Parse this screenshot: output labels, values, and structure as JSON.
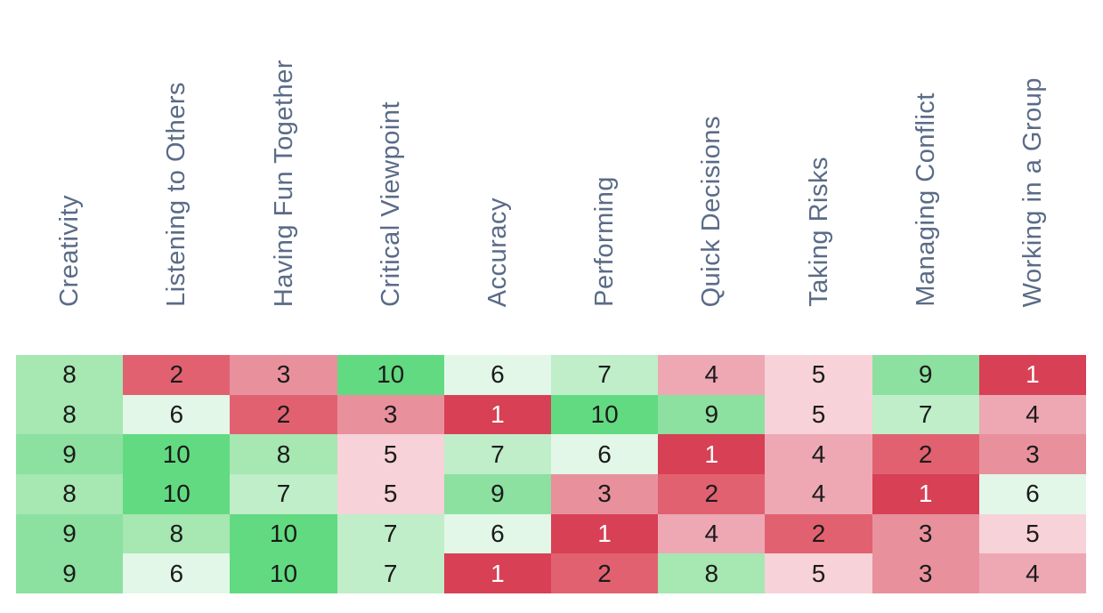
{
  "chart_data": {
    "type": "heatmap",
    "title": "",
    "columns": [
      "Creativity",
      "Listening to Others",
      "Having Fun Together",
      "Critical Viewpoint",
      "Accuracy",
      "Performing",
      "Quick Decisions",
      "Taking Risks",
      "Managing Conflict",
      "Working in a Group"
    ],
    "rows": [
      [
        8,
        2,
        3,
        10,
        6,
        7,
        4,
        5,
        9,
        1
      ],
      [
        8,
        6,
        2,
        3,
        1,
        10,
        9,
        5,
        7,
        4
      ],
      [
        9,
        10,
        8,
        5,
        7,
        6,
        1,
        4,
        2,
        3
      ],
      [
        8,
        10,
        7,
        5,
        9,
        3,
        2,
        4,
        1,
        6
      ],
      [
        9,
        8,
        10,
        7,
        6,
        1,
        4,
        2,
        3,
        5
      ],
      [
        9,
        6,
        10,
        7,
        1,
        2,
        8,
        5,
        3,
        4
      ]
    ],
    "value_range": [
      1,
      10
    ],
    "legend": "none",
    "grid": "off",
    "colors": {
      "scale": {
        "1": "#d84055",
        "2": "#e16170",
        "3": "#e9909d",
        "4": "#eda8b4",
        "5": "#f7d2d9",
        "6": "#e2f7e7",
        "7": "#bfeec9",
        "8": "#a6e7b2",
        "9": "#8ce1a0",
        "10": "#62da81"
      },
      "text_default": "#1b1b1b",
      "text_on_dark": "#ffffff",
      "header_text": "#5a6b87",
      "background": "#ffffff"
    },
    "white_text_values": [
      1
    ]
  }
}
